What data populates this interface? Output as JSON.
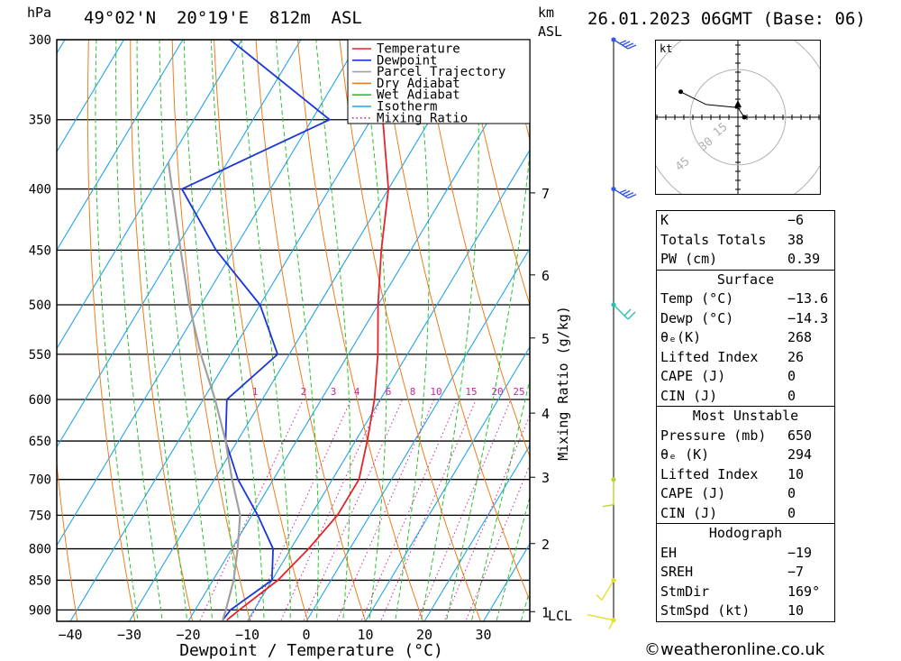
{
  "header": {
    "hpa_label": "hPa",
    "location": "49°02'N  20°19'E  812m  ASL",
    "km_label": "km",
    "asl_label": "ASL",
    "datetime": "26.01.2023 06GMT (Base: 06)"
  },
  "chart_data": {
    "type": "line",
    "title": "",
    "xlabel": "Dewpoint / Temperature (°C)",
    "ylabel": "hPa",
    "y2label": "Mixing Ratio (g/kg)",
    "xlim": [
      -40,
      38
    ],
    "x_ticks": [
      "-40",
      "-30",
      "-20",
      "-10",
      "0",
      "10",
      "20",
      "30"
    ],
    "y_ticks": [
      300,
      350,
      400,
      450,
      500,
      550,
      600,
      650,
      700,
      750,
      800,
      850,
      900
    ],
    "km_ticks": [
      {
        "label": "7",
        "p": 403
      },
      {
        "label": "6",
        "p": 472
      },
      {
        "label": "5",
        "p": 533
      },
      {
        "label": "4",
        "p": 616
      },
      {
        "label": "3",
        "p": 697
      },
      {
        "label": "2",
        "p": 792
      },
      {
        "label": "1",
        "p": 903
      }
    ],
    "lcl_label": "LCL",
    "mixing_ratio_labels": [
      "1",
      "2",
      "3",
      "4",
      "6",
      "8",
      "10",
      "15",
      "20",
      "25"
    ],
    "legend": [
      "Temperature",
      "Dewpoint",
      "Parcel Trajectory",
      "Dry Adiabat",
      "Wet Adiabat",
      "Isotherm",
      "Mixing Ratio"
    ],
    "series": [
      {
        "name": "Temperature",
        "color": "#e8222a",
        "points": [
          [
            300,
            -43
          ],
          [
            350,
            -38
          ],
          [
            400,
            -30
          ],
          [
            450,
            -25
          ],
          [
            500,
            -20
          ],
          [
            550,
            -15
          ],
          [
            600,
            -11
          ],
          [
            650,
            -8
          ],
          [
            700,
            -5.5
          ],
          [
            750,
            -5.5
          ],
          [
            800,
            -7
          ],
          [
            850,
            -9
          ],
          [
            900,
            -12.5
          ],
          [
            918,
            -13.6
          ]
        ]
      },
      {
        "name": "Dewpoint",
        "color": "#1a35d8",
        "points": [
          [
            300,
            -72
          ],
          [
            350,
            -47
          ],
          [
            400,
            -65
          ],
          [
            450,
            -53
          ],
          [
            500,
            -40
          ],
          [
            550,
            -32
          ],
          [
            600,
            -36
          ],
          [
            650,
            -32
          ],
          [
            700,
            -26
          ],
          [
            750,
            -19
          ],
          [
            800,
            -13
          ],
          [
            850,
            -10
          ],
          [
            900,
            -14
          ],
          [
            918,
            -14.3
          ]
        ]
      },
      {
        "name": "Parcel Trajectory",
        "color": "#a0a0a0",
        "points": [
          [
            380,
            -70
          ],
          [
            450,
            -59
          ],
          [
            500,
            -52
          ],
          [
            550,
            -45
          ],
          [
            600,
            -38
          ],
          [
            650,
            -32
          ],
          [
            700,
            -27
          ],
          [
            750,
            -22
          ],
          [
            800,
            -19
          ],
          [
            850,
            -16.5
          ],
          [
            900,
            -14.8
          ],
          [
            918,
            -14.3
          ]
        ]
      }
    ]
  },
  "hodograph": {
    "unit": "kt",
    "ring_labels": [
      "15",
      "30",
      "45"
    ],
    "points": [
      [
        -18,
        8
      ],
      [
        -10,
        4
      ],
      [
        0,
        3
      ],
      [
        2,
        0
      ]
    ]
  },
  "wind_barbs": [
    {
      "p": 300,
      "color": "#3355ee"
    },
    {
      "p": 400,
      "color": "#3355ee"
    },
    {
      "p": 500,
      "color": "#26c2b0"
    },
    {
      "p": 700,
      "color": "#b4d830"
    },
    {
      "p": 850,
      "color": "#e3df2a"
    },
    {
      "p": 918,
      "color": "#e3df2a"
    }
  ],
  "indices": {
    "rows": [
      {
        "k": "K",
        "v": "−6"
      },
      {
        "k": "Totals Totals",
        "v": "38"
      },
      {
        "k": "PW (cm)",
        "v": "0.39"
      }
    ]
  },
  "surface": {
    "title": "Surface",
    "rows": [
      {
        "k": "Temp (°C)",
        "v": "−13.6"
      },
      {
        "k": "Dewp (°C)",
        "v": "−14.3"
      },
      {
        "k": "θₑ(K)",
        "v": "268"
      },
      {
        "k": "Lifted Index",
        "v": "26"
      },
      {
        "k": "CAPE (J)",
        "v": "0"
      },
      {
        "k": "CIN (J)",
        "v": "0"
      }
    ]
  },
  "unstable": {
    "title": "Most Unstable",
    "rows": [
      {
        "k": "Pressure (mb)",
        "v": "650"
      },
      {
        "k": "θₑ (K)",
        "v": "294"
      },
      {
        "k": "Lifted Index",
        "v": "10"
      },
      {
        "k": "CAPE (J)",
        "v": "0"
      },
      {
        "k": "CIN (J)",
        "v": "0"
      }
    ]
  },
  "hodo_table": {
    "title": "Hodograph",
    "rows": [
      {
        "k": "EH",
        "v": "−19"
      },
      {
        "k": "SREH",
        "v": "−7"
      },
      {
        "k": "StmDir",
        "v": "169°"
      },
      {
        "k": "StmSpd (kt)",
        "v": "10"
      }
    ]
  },
  "footer": {
    "credit": "©weatheronline.co.uk"
  }
}
